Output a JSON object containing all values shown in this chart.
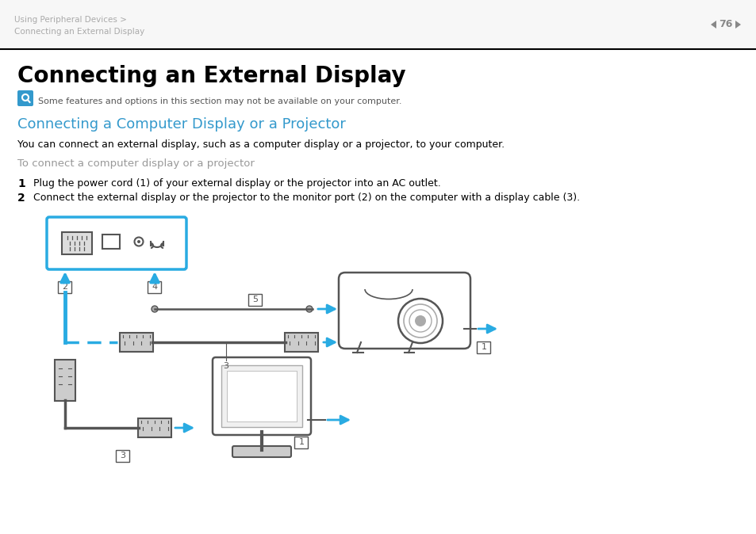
{
  "bg_color": "#ffffff",
  "header_bg": "#f0f0f0",
  "header_text1": "Using Peripheral Devices >",
  "header_text2": "Connecting an External Display",
  "header_text_color": "#aaaaaa",
  "page_num": "76",
  "page_num_color": "#888888",
  "title": "Connecting an External Display",
  "title_fontsize": 20,
  "title_color": "#000000",
  "note_text": "Some features and options in this section may not be available on your computer.",
  "note_color": "#555555",
  "note_fontsize": 8,
  "section_title": "Connecting a Computer Display or a Projector",
  "section_title_color": "#3399cc",
  "section_title_fontsize": 13,
  "body_text1": "You can connect an external display, such as a computer display or a projector, to your computer.",
  "body_text1_color": "#000000",
  "body_text1_fontsize": 9,
  "subheading": "To connect a computer display or a projector",
  "subheading_color": "#999999",
  "subheading_fontsize": 9.5,
  "step1": "Plug the power cord (1) of your external display or the projector into an AC outlet.",
  "step2": "Connect the external display or the projector to the monitor port (2) on the computer with a display cable (3).",
  "step_color": "#000000",
  "step_fontsize": 9,
  "line_color": "#000000",
  "cyan_color": "#29ABE2",
  "dark_gray": "#555555",
  "light_gray": "#aaaaaa",
  "mid_gray": "#888888"
}
